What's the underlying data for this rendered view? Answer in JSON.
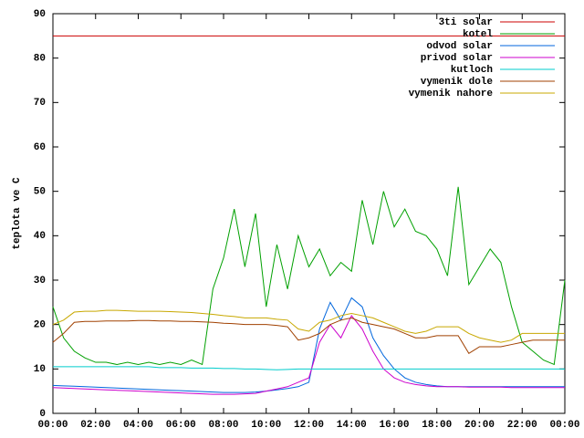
{
  "chart_data": {
    "type": "line",
    "y_label": "teplota ve C",
    "x": [
      0,
      0.5,
      1,
      1.5,
      2,
      2.5,
      3,
      3.5,
      4,
      4.5,
      5,
      5.5,
      6,
      6.5,
      7,
      7.5,
      8,
      8.5,
      9,
      9.5,
      10,
      10.5,
      11,
      11.5,
      12,
      12.5,
      13,
      13.5,
      14,
      14.5,
      15,
      15.5,
      16,
      16.5,
      17,
      17.5,
      18,
      18.5,
      19,
      19.5,
      20,
      20.5,
      21,
      21.5,
      22,
      22.5,
      23,
      23.5,
      24
    ],
    "xlim": [
      0,
      24
    ],
    "xticks": [
      {
        "value": 0,
        "label": "00:00"
      },
      {
        "value": 2,
        "label": "02:00"
      },
      {
        "value": 4,
        "label": "04:00"
      },
      {
        "value": 6,
        "label": "06:00"
      },
      {
        "value": 8,
        "label": "08:00"
      },
      {
        "value": 10,
        "label": "10:00"
      },
      {
        "value": 12,
        "label": "12:00"
      },
      {
        "value": 14,
        "label": "14:00"
      },
      {
        "value": 16,
        "label": "16:00"
      },
      {
        "value": 18,
        "label": "18:00"
      },
      {
        "value": 20,
        "label": "20:00"
      },
      {
        "value": 22,
        "label": "22:00"
      },
      {
        "value": 24,
        "label": "00:00"
      }
    ],
    "ylim": [
      0,
      90
    ],
    "yticks": [
      0,
      10,
      20,
      30,
      40,
      50,
      60,
      70,
      80,
      90
    ],
    "legend": "top-right",
    "series": [
      {
        "name": "3ti solar",
        "color": "#cc0000",
        "values": [
          85,
          85,
          85,
          85,
          85,
          85,
          85,
          85,
          85,
          85,
          85,
          85,
          85,
          85,
          85,
          85,
          85,
          85,
          85,
          85,
          85,
          85,
          85,
          85,
          85,
          85,
          85,
          85,
          85,
          85,
          85,
          85,
          85,
          85,
          85,
          85,
          85,
          85,
          85,
          85,
          85,
          85,
          85,
          85,
          85,
          85,
          85,
          85,
          85
        ]
      },
      {
        "name": "kotel",
        "color": "#00a000",
        "values": [
          24,
          17,
          14,
          12.5,
          11.5,
          11.5,
          11,
          11.5,
          11,
          11.5,
          11,
          11.5,
          11,
          12,
          11,
          28,
          35,
          46,
          33,
          45,
          24,
          38,
          28,
          40,
          33,
          37,
          31,
          34,
          32,
          48,
          38,
          50,
          42,
          46,
          41,
          40,
          37,
          31,
          51,
          29,
          33,
          37,
          34,
          24,
          16,
          14,
          12,
          11,
          30
        ]
      },
      {
        "name": "odvod solar",
        "color": "#0066dd",
        "values": [
          6.3,
          6.2,
          6.1,
          6,
          5.9,
          5.8,
          5.7,
          5.6,
          5.5,
          5.4,
          5.3,
          5.2,
          5.1,
          5,
          4.9,
          4.8,
          4.7,
          4.7,
          4.7,
          4.8,
          5,
          5.3,
          5.6,
          6,
          7,
          19,
          25,
          21,
          26,
          24,
          17,
          13,
          10,
          8,
          7,
          6.5,
          6.2,
          6,
          6,
          6,
          6,
          6,
          6,
          6,
          6,
          6,
          6,
          6,
          6
        ]
      },
      {
        "name": "privod solar",
        "color": "#cc00cc",
        "values": [
          5.8,
          5.7,
          5.6,
          5.5,
          5.4,
          5.3,
          5.2,
          5.1,
          5,
          4.9,
          4.8,
          4.7,
          4.6,
          4.5,
          4.4,
          4.3,
          4.3,
          4.3,
          4.4,
          4.5,
          5,
          5.5,
          6,
          7,
          8,
          16,
          20,
          17,
          22,
          19,
          14,
          10,
          8,
          7,
          6.5,
          6.2,
          6,
          6,
          6,
          5.9,
          5.9,
          5.9,
          5.9,
          5.8,
          5.8,
          5.8,
          5.8,
          5.8,
          5.8
        ]
      },
      {
        "name": "kutloch",
        "color": "#00cccc",
        "values": [
          10.5,
          10.5,
          10.5,
          10.5,
          10.5,
          10.5,
          10.5,
          10.5,
          10.5,
          10.5,
          10.3,
          10.3,
          10.3,
          10.2,
          10.2,
          10.2,
          10.1,
          10.1,
          10,
          10,
          9.9,
          9.8,
          9.9,
          10,
          10,
          10,
          10,
          10,
          10,
          10,
          10,
          10,
          10,
          10,
          10,
          10,
          10,
          10,
          10,
          10,
          10,
          10,
          10,
          10,
          10,
          10,
          10,
          10,
          10
        ]
      },
      {
        "name": "vymenik dole",
        "color": "#a04000",
        "values": [
          16,
          18,
          20.5,
          20.7,
          20.7,
          20.8,
          20.8,
          20.8,
          20.9,
          20.9,
          20.8,
          20.8,
          20.7,
          20.7,
          20.6,
          20.5,
          20.3,
          20.2,
          20,
          20,
          20,
          19.8,
          19.5,
          16.5,
          17,
          18,
          20,
          21,
          21.5,
          20.5,
          20,
          19.5,
          19,
          18,
          17,
          17,
          17.5,
          17.5,
          17.5,
          13.5,
          15,
          15,
          15,
          15.5,
          16,
          16.5,
          16.5,
          16.5,
          16.5
        ]
      },
      {
        "name": "vymenik nahore",
        "color": "#c8a800",
        "values": [
          20,
          21,
          22.8,
          23,
          23,
          23.2,
          23.2,
          23.1,
          23,
          23,
          23,
          22.9,
          22.8,
          22.7,
          22.5,
          22.3,
          22,
          21.8,
          21.5,
          21.5,
          21.5,
          21.2,
          21,
          19,
          18.5,
          20.5,
          21,
          22,
          22.5,
          22,
          21.5,
          20.5,
          19.5,
          18.5,
          18,
          18.5,
          19.5,
          19.5,
          19.5,
          18,
          17,
          16.5,
          16,
          16.5,
          18,
          18,
          18,
          18,
          18
        ]
      }
    ]
  }
}
